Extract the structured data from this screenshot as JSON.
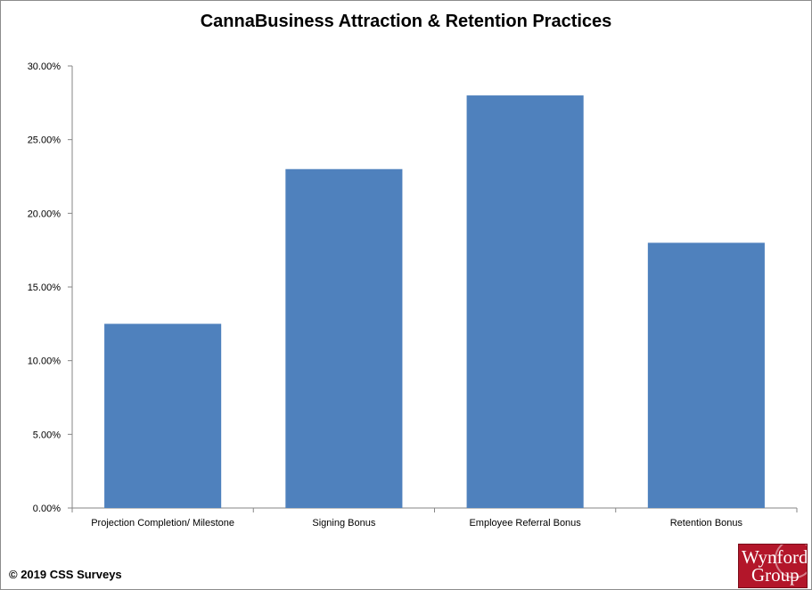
{
  "chart_data": {
    "type": "bar",
    "title": "CannaBusiness Attraction & Retention Practices",
    "xlabel": "",
    "ylabel": "",
    "categories": [
      "Projection Completion/ Milestone",
      "Signing Bonus",
      "Employee Referral Bonus",
      "Retention Bonus"
    ],
    "values": [
      12.5,
      23,
      28,
      18
    ],
    "ylim": [
      0,
      30
    ],
    "y_ticks": [
      "0.00%",
      "5.00%",
      "10.00%",
      "15.00%",
      "20.00%",
      "25.00%",
      "30.00%"
    ],
    "y_tick_values": [
      0,
      5,
      10,
      15,
      20,
      25,
      30
    ],
    "grid": false,
    "legend": "none",
    "bar_color": "#4f81bd"
  },
  "footer": {
    "copyright": "© 2019 CSS Surveys",
    "logo_line1": "Wynford",
    "logo_line2": "Group"
  }
}
